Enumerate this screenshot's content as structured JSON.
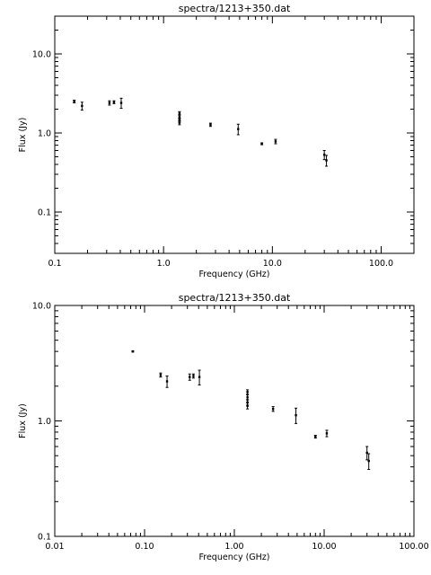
{
  "chart_data": [
    {
      "type": "scatter",
      "title": "spectra/1213+350.dat",
      "xlabel": "Frequency (GHz)",
      "ylabel": "Flux (Jy)",
      "xscale": "log",
      "yscale": "log",
      "xlim": [
        0.1,
        200
      ],
      "ylim": [
        0.03,
        30
      ],
      "xticks": [
        0.1,
        1.0,
        10.0,
        100.0
      ],
      "xtick_labels": [
        "0.1",
        "1.0",
        "10.0",
        "100.0"
      ],
      "yticks": [
        0.1,
        1.0,
        10.0
      ],
      "ytick_labels": [
        "0.1",
        "1.0",
        "10.0"
      ],
      "grid": false,
      "points": [
        {
          "x": 0.151,
          "y": 2.5,
          "err": 0.1
        },
        {
          "x": 0.178,
          "y": 2.2,
          "err": 0.25
        },
        {
          "x": 0.318,
          "y": 2.4,
          "err": 0.15
        },
        {
          "x": 0.35,
          "y": 2.45,
          "err": 0.1
        },
        {
          "x": 0.408,
          "y": 2.4,
          "err": 0.35
        },
        {
          "x": 1.4,
          "y": 1.78,
          "err": 0.08
        },
        {
          "x": 1.4,
          "y": 1.6,
          "err": 0.08
        },
        {
          "x": 1.4,
          "y": 1.45,
          "err": 0.08
        },
        {
          "x": 1.4,
          "y": 1.35,
          "err": 0.08
        },
        {
          "x": 2.7,
          "y": 1.27,
          "err": 0.06
        },
        {
          "x": 4.85,
          "y": 1.12,
          "err": 0.17
        },
        {
          "x": 8.0,
          "y": 0.73,
          "err": 0.02
        },
        {
          "x": 10.7,
          "y": 0.78,
          "err": 0.05
        },
        {
          "x": 30.0,
          "y": 0.53,
          "err": 0.07
        },
        {
          "x": 31.4,
          "y": 0.45,
          "err": 0.07
        }
      ]
    },
    {
      "type": "scatter",
      "title": "spectra/1213+350.dat",
      "xlabel": "Frequency (GHz)",
      "ylabel": "Flux (Jy)",
      "xscale": "log",
      "yscale": "log",
      "xlim": [
        0.01,
        100
      ],
      "ylim": [
        0.1,
        10
      ],
      "xticks": [
        0.01,
        0.1,
        1.0,
        10.0,
        100.0
      ],
      "xtick_labels": [
        "0.01",
        "0.10",
        "1.00",
        "10.00",
        "100.00"
      ],
      "yticks": [
        0.1,
        1.0,
        10.0
      ],
      "ytick_labels": [
        "0.1",
        "1.0",
        "10.0"
      ],
      "grid": false,
      "points": [
        {
          "x": 0.074,
          "y": 4.0,
          "err": 0.05
        },
        {
          "x": 0.151,
          "y": 2.5,
          "err": 0.1
        },
        {
          "x": 0.178,
          "y": 2.2,
          "err": 0.25
        },
        {
          "x": 0.318,
          "y": 2.4,
          "err": 0.15
        },
        {
          "x": 0.35,
          "y": 2.45,
          "err": 0.1
        },
        {
          "x": 0.408,
          "y": 2.4,
          "err": 0.35
        },
        {
          "x": 1.4,
          "y": 1.78,
          "err": 0.08
        },
        {
          "x": 1.4,
          "y": 1.6,
          "err": 0.08
        },
        {
          "x": 1.4,
          "y": 1.45,
          "err": 0.08
        },
        {
          "x": 1.4,
          "y": 1.35,
          "err": 0.08
        },
        {
          "x": 2.7,
          "y": 1.27,
          "err": 0.06
        },
        {
          "x": 4.85,
          "y": 1.12,
          "err": 0.17
        },
        {
          "x": 8.0,
          "y": 0.73,
          "err": 0.02
        },
        {
          "x": 10.7,
          "y": 0.78,
          "err": 0.05
        },
        {
          "x": 30.0,
          "y": 0.53,
          "err": 0.07
        },
        {
          "x": 31.4,
          "y": 0.45,
          "err": 0.07
        }
      ]
    }
  ]
}
